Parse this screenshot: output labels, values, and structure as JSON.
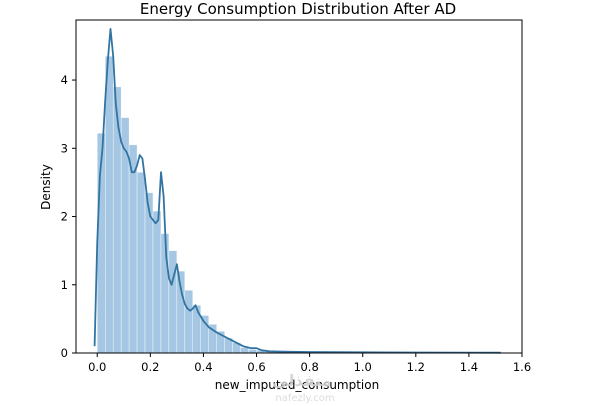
{
  "chart_data": {
    "type": "bar",
    "title": "Energy Consumption Distribution After AD",
    "xlabel": "new_imputed_consumption",
    "ylabel": "Density",
    "xlim": [
      -0.08,
      1.6
    ],
    "ylim": [
      0,
      4.88
    ],
    "xticks": [
      "0.0",
      "0.2",
      "0.4",
      "0.6",
      "0.8",
      "1.0",
      "1.2",
      "1.4",
      "1.6"
    ],
    "xtick_values": [
      0.0,
      0.2,
      0.4,
      0.6,
      0.8,
      1.0,
      1.2,
      1.4,
      1.6
    ],
    "yticks": [
      "0",
      "1",
      "2",
      "3",
      "4"
    ],
    "ytick_values": [
      0,
      1,
      2,
      3,
      4
    ],
    "grid": false,
    "histogram": {
      "bin_edges": [
        0.0,
        0.03,
        0.06,
        0.09,
        0.12,
        0.15,
        0.18,
        0.21,
        0.24,
        0.27,
        0.3,
        0.33,
        0.36,
        0.39,
        0.42,
        0.45,
        0.48,
        0.51,
        0.54,
        0.57,
        0.6,
        0.63,
        0.66,
        0.69,
        0.72,
        0.75,
        0.78,
        0.81,
        0.84,
        0.87,
        0.9,
        0.93,
        0.96,
        0.99,
        1.02,
        1.05,
        1.08,
        1.11,
        1.14,
        1.17,
        1.2,
        1.23,
        1.26,
        1.29,
        1.32,
        1.35,
        1.38,
        1.41,
        1.44,
        1.47,
        1.5,
        1.53
      ],
      "values": [
        3.22,
        4.35,
        3.9,
        3.45,
        3.05,
        2.65,
        2.35,
        2.08,
        1.75,
        1.5,
        1.2,
        0.92,
        0.7,
        0.55,
        0.42,
        0.32,
        0.22,
        0.15,
        0.08,
        0.05,
        0.04,
        0.025,
        0.02,
        0.015,
        0.015,
        0.01,
        0.01,
        0.01,
        0.01,
        0.01,
        0.01,
        0.01,
        0.01,
        0.01,
        0.008,
        0.008,
        0.008,
        0.008,
        0.008,
        0.008,
        0.008,
        0.008,
        0.008,
        0.008,
        0.008,
        0.008,
        0.008,
        0.008,
        0.008,
        0.008,
        0.008
      ],
      "color": "#a6c7e3"
    },
    "kde": {
      "x": [
        -0.01,
        0.0,
        0.01,
        0.02,
        0.03,
        0.04,
        0.05,
        0.06,
        0.07,
        0.08,
        0.09,
        0.1,
        0.11,
        0.12,
        0.13,
        0.14,
        0.15,
        0.16,
        0.17,
        0.18,
        0.19,
        0.2,
        0.21,
        0.22,
        0.23,
        0.24,
        0.25,
        0.26,
        0.27,
        0.28,
        0.29,
        0.3,
        0.31,
        0.32,
        0.33,
        0.34,
        0.35,
        0.36,
        0.37,
        0.38,
        0.4,
        0.42,
        0.45,
        0.5,
        0.55,
        0.58,
        0.6,
        0.62,
        0.65,
        0.7,
        0.8,
        0.9,
        1.0,
        1.2,
        1.4,
        1.52
      ],
      "y": [
        0.1,
        1.6,
        2.6,
        3.0,
        3.7,
        4.3,
        4.75,
        4.35,
        3.65,
        3.3,
        3.1,
        3.0,
        2.95,
        2.85,
        2.65,
        2.65,
        2.75,
        2.9,
        2.85,
        2.55,
        2.2,
        2.0,
        1.95,
        1.9,
        1.95,
        2.65,
        2.3,
        1.4,
        1.1,
        1.0,
        1.15,
        1.3,
        1.05,
        0.85,
        0.72,
        0.65,
        0.62,
        0.65,
        0.7,
        0.6,
        0.47,
        0.38,
        0.3,
        0.2,
        0.1,
        0.07,
        0.07,
        0.04,
        0.025,
        0.02,
        0.015,
        0.012,
        0.01,
        0.008,
        0.006,
        0.005
      ],
      "color": "#3274a1"
    }
  },
  "watermark": {
    "text": "منفذلي",
    "sub": "nafezly.com"
  }
}
